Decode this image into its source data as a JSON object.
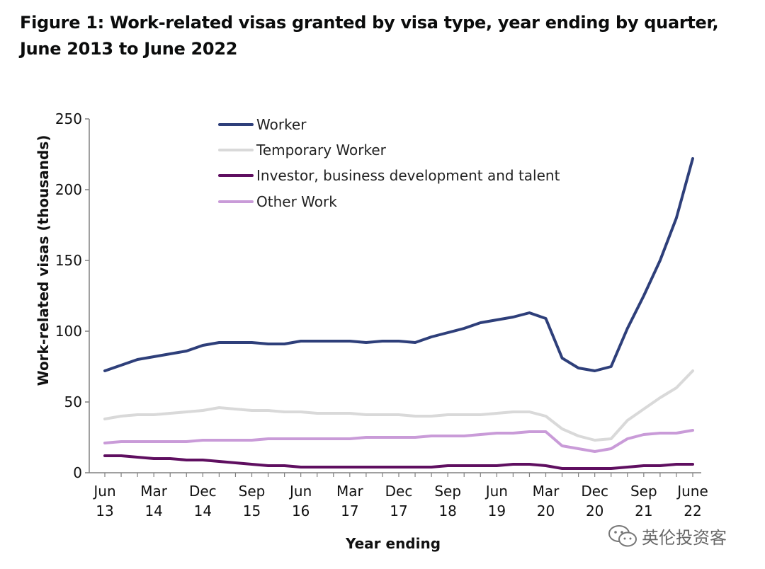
{
  "title": "Figure 1: Work-related visas granted by visa type, year ending by quarter, June 2013 to June 2022",
  "watermark": {
    "icon": "wechat-icon",
    "text": "英伦投资客"
  },
  "chart_data": {
    "type": "line",
    "xlabel": "Year ending",
    "ylabel": "Work-related visas (thousands)",
    "ylim": [
      0,
      250
    ],
    "yticks": [
      0,
      50,
      100,
      150,
      200,
      250
    ],
    "grid": false,
    "legend_position": "top-left",
    "x_tick_labels": [
      {
        "top": "Jun",
        "bottom": "13",
        "index": 0
      },
      {
        "top": "Mar",
        "bottom": "14",
        "index": 3
      },
      {
        "top": "Dec",
        "bottom": "14",
        "index": 6
      },
      {
        "top": "Sep",
        "bottom": "15",
        "index": 9
      },
      {
        "top": "Jun",
        "bottom": "16",
        "index": 12
      },
      {
        "top": "Mar",
        "bottom": "17",
        "index": 15
      },
      {
        "top": "Dec",
        "bottom": "17",
        "index": 18
      },
      {
        "top": "Sep",
        "bottom": "18",
        "index": 21
      },
      {
        "top": "Jun",
        "bottom": "19",
        "index": 24
      },
      {
        "top": "Mar",
        "bottom": "20",
        "index": 27
      },
      {
        "top": "Dec",
        "bottom": "20",
        "index": 30
      },
      {
        "top": "Sep",
        "bottom": "21",
        "index": 33
      },
      {
        "top": "June",
        "bottom": "22",
        "index": 36
      }
    ],
    "x": [
      "Jun 13",
      "Sep 13",
      "Dec 13",
      "Mar 14",
      "Jun 14",
      "Sep 14",
      "Dec 14",
      "Mar 15",
      "Jun 15",
      "Sep 15",
      "Dec 15",
      "Mar 16",
      "Jun 16",
      "Sep 16",
      "Dec 16",
      "Mar 17",
      "Jun 17",
      "Sep 17",
      "Dec 17",
      "Mar 18",
      "Jun 18",
      "Sep 18",
      "Dec 18",
      "Mar 19",
      "Jun 19",
      "Sep 19",
      "Dec 19",
      "Mar 20",
      "Jun 20",
      "Sep 20",
      "Dec 20",
      "Mar 21",
      "Jun 21",
      "Sep 21",
      "Dec 21",
      "Mar 22",
      "Jun 22"
    ],
    "series": [
      {
        "name": "Worker",
        "color": "#2e3f7a",
        "values": [
          72,
          76,
          80,
          82,
          84,
          86,
          90,
          92,
          92,
          92,
          91,
          91,
          93,
          93,
          93,
          93,
          92,
          93,
          93,
          92,
          96,
          99,
          102,
          106,
          108,
          110,
          113,
          109,
          81,
          74,
          72,
          75,
          102,
          125,
          150,
          180,
          222
        ]
      },
      {
        "name": "Temporary Worker",
        "color": "#d9d9d9",
        "values": [
          38,
          40,
          41,
          41,
          42,
          43,
          44,
          46,
          45,
          44,
          44,
          43,
          43,
          42,
          42,
          42,
          41,
          41,
          41,
          40,
          40,
          41,
          41,
          41,
          42,
          43,
          43,
          40,
          31,
          26,
          23,
          24,
          37,
          45,
          53,
          60,
          72
        ]
      },
      {
        "name": "Investor, business development and talent",
        "color": "#5f0f60",
        "values": [
          12,
          12,
          11,
          10,
          10,
          9,
          9,
          8,
          7,
          6,
          5,
          5,
          4,
          4,
          4,
          4,
          4,
          4,
          4,
          4,
          4,
          5,
          5,
          5,
          5,
          6,
          6,
          5,
          3,
          3,
          3,
          3,
          4,
          5,
          5,
          6,
          6
        ]
      },
      {
        "name": "Other Work",
        "color": "#c99bd8",
        "values": [
          21,
          22,
          22,
          22,
          22,
          22,
          23,
          23,
          23,
          23,
          24,
          24,
          24,
          24,
          24,
          24,
          25,
          25,
          25,
          25,
          26,
          26,
          26,
          27,
          28,
          28,
          29,
          29,
          19,
          17,
          15,
          17,
          24,
          27,
          28,
          28,
          30
        ]
      }
    ]
  }
}
